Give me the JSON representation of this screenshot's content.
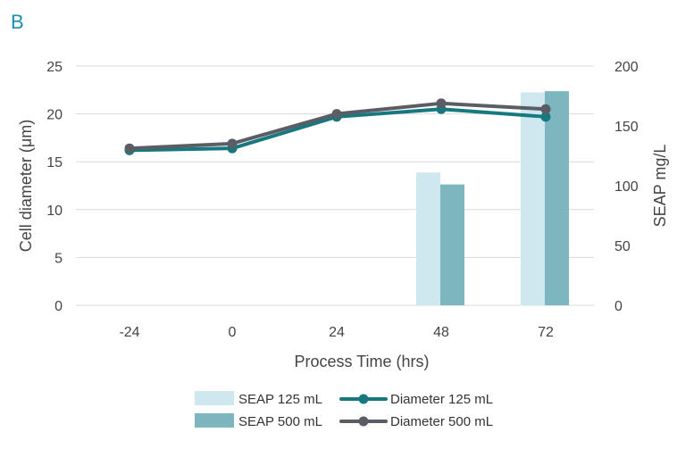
{
  "chart_data": {
    "type": "bar+line",
    "panel_label": "B",
    "xlabel": "Process Time (hrs)",
    "ylabel_left": "Cell diameter (μm)",
    "ylabel_right": "SEAP mg/L",
    "categories": [
      "-24",
      "0",
      "24",
      "48",
      "72"
    ],
    "ylim_left": [
      0,
      25
    ],
    "yticks_left": [
      "0",
      "5",
      "10",
      "15",
      "20",
      "25"
    ],
    "ylim_right": [
      0,
      200
    ],
    "yticks_right": [
      "0",
      "50",
      "100",
      "150",
      "200"
    ],
    "grid": true,
    "bar_series": [
      {
        "name": "SEAP 125 mL",
        "color": "#cfe8ef",
        "values": [
          null,
          null,
          null,
          111,
          178
        ]
      },
      {
        "name": "SEAP 500 mL",
        "color": "#7db6bf",
        "values": [
          null,
          null,
          null,
          101,
          179
        ]
      }
    ],
    "line_series": [
      {
        "name": "Diameter 125 mL",
        "color": "#17787f",
        "values": [
          16.2,
          16.4,
          19.7,
          20.5,
          19.7
        ]
      },
      {
        "name": "Diameter 500 mL",
        "color": "#5a5d63",
        "values": [
          16.4,
          16.9,
          20.0,
          21.1,
          20.5
        ]
      }
    ],
    "legend": {
      "placement": "bottom",
      "items": [
        "SEAP 125 mL",
        "Diameter 125 mL",
        "SEAP 500 mL",
        "Diameter 500 mL"
      ]
    }
  }
}
